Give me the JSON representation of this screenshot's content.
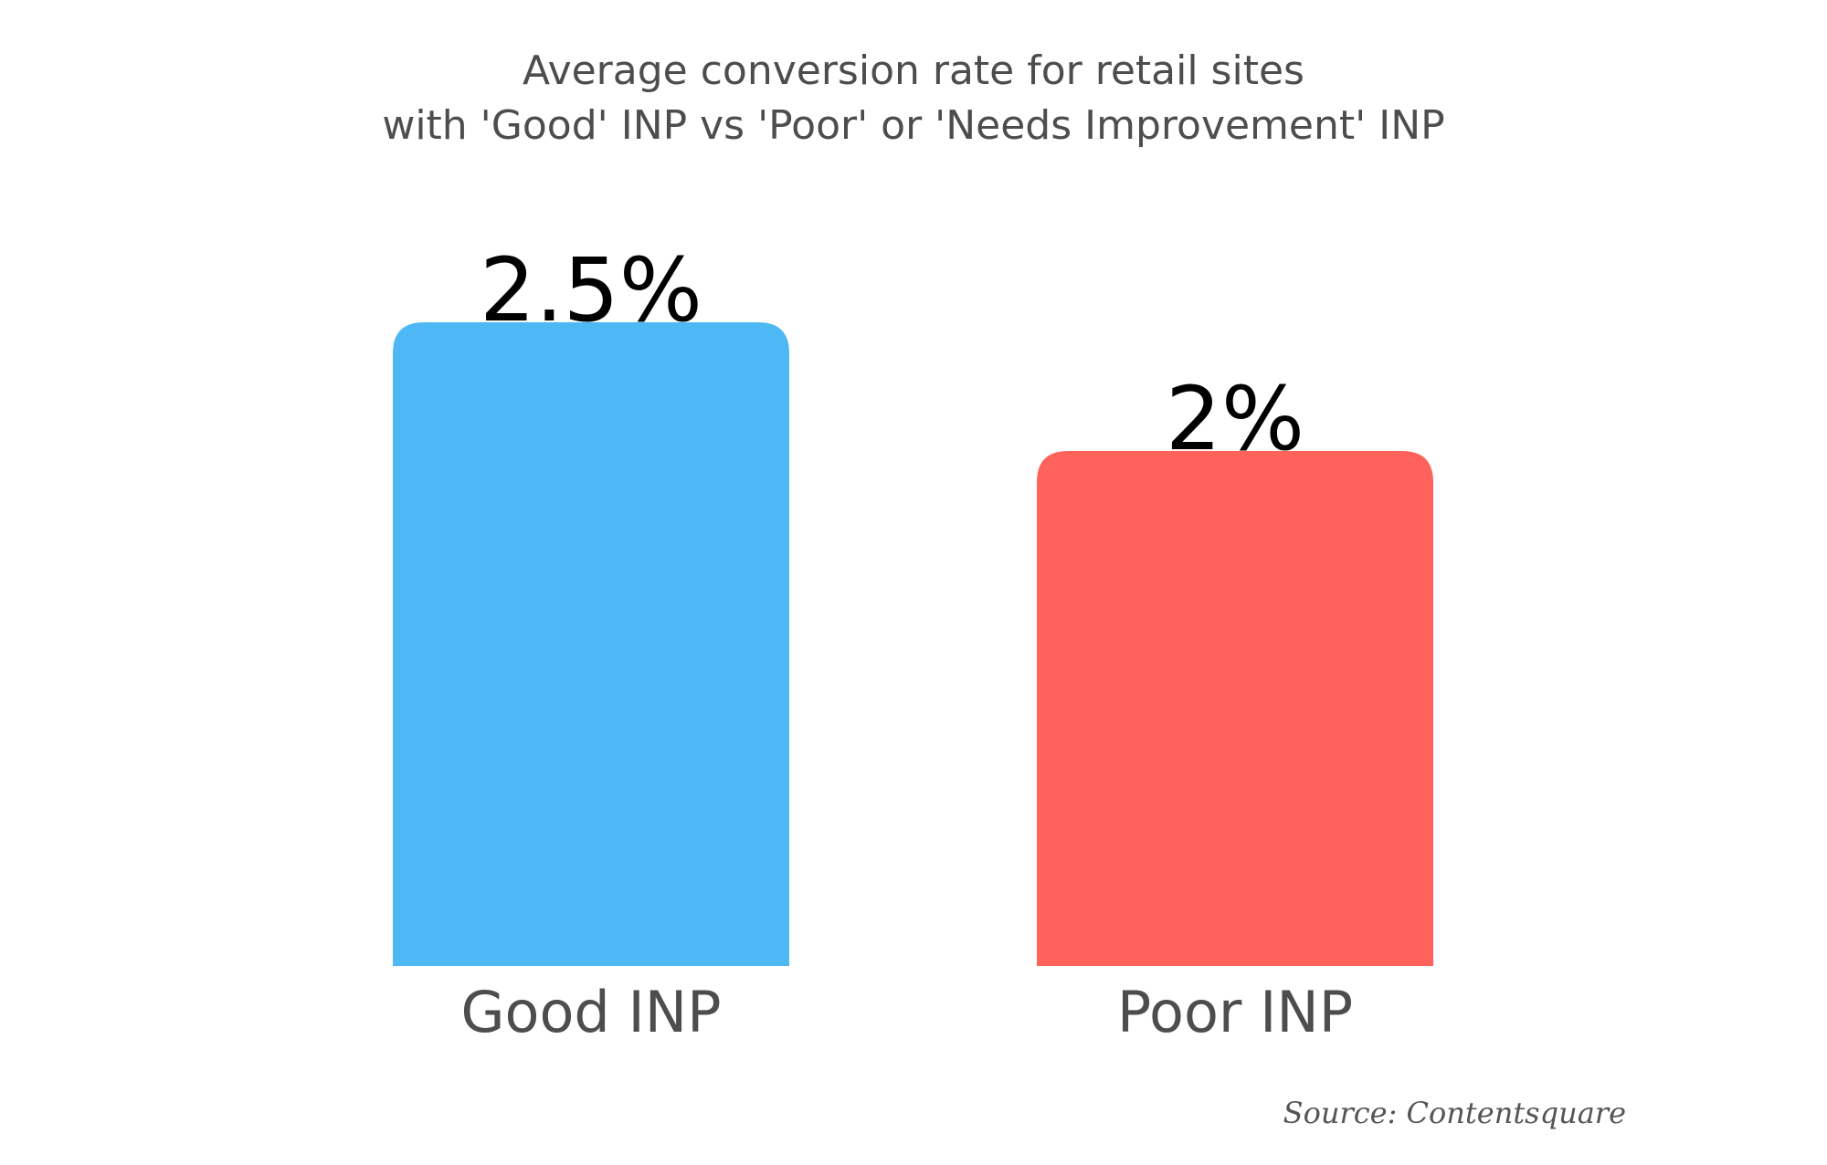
{
  "chart_data": {
    "type": "bar",
    "title_lines": [
      "Average conversion rate for retail sites",
      "with 'Good' INP vs 'Poor' or 'Needs Improvement' INP"
    ],
    "categories": [
      "Good INP",
      "Poor INP"
    ],
    "values": [
      2.5,
      2
    ],
    "value_labels": [
      "2.5%",
      "2%"
    ],
    "colors": [
      "#4db8f4",
      "#ff625a"
    ],
    "xlabel": "",
    "ylabel": "",
    "ylim": [
      0,
      2.5
    ],
    "grid": false,
    "legend": "none"
  },
  "source": "Source: Contentsquare"
}
